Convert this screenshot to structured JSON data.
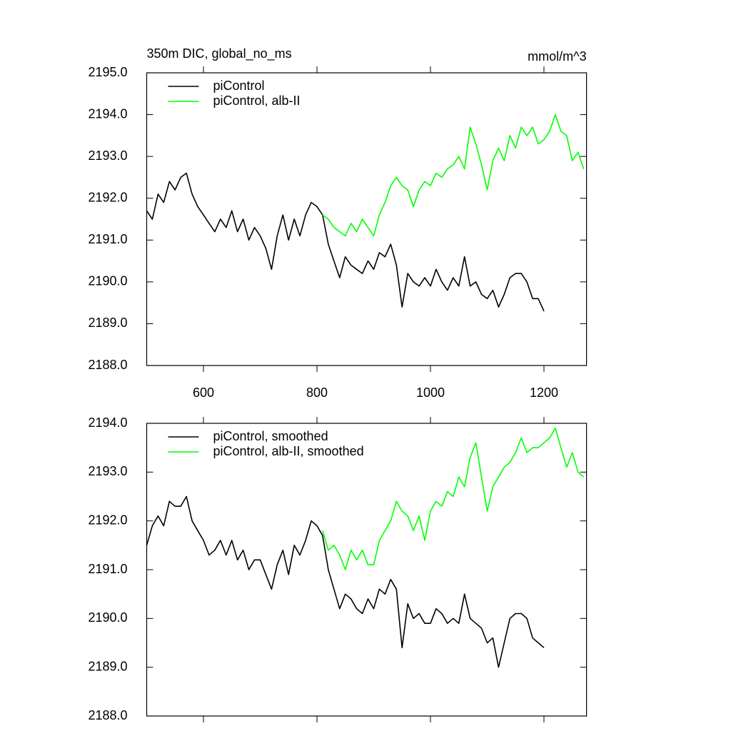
{
  "chart_data": [
    {
      "type": "line",
      "title": "350m DIC, global_no_ms",
      "units": "mmol/m^3",
      "xlim": [
        500,
        1275
      ],
      "xticks": [
        600,
        800,
        1000,
        1200
      ],
      "ylim": [
        2188,
        2195
      ],
      "yticks": [
        {
          "value": 2188,
          "label": "2188.0"
        },
        {
          "value": 2189,
          "label": "2189.0"
        },
        {
          "value": 2190,
          "label": "2190.0"
        },
        {
          "value": 2191,
          "label": "2191.0"
        },
        {
          "value": 2192,
          "label": "2192.0"
        },
        {
          "value": 2193,
          "label": "2193.0"
        },
        {
          "value": 2194,
          "label": "2194.0"
        },
        {
          "value": 2195,
          "label": "2195.0"
        }
      ],
      "legend": "upper-left",
      "series": [
        {
          "name": "piControl",
          "color": "#000000",
          "x": [
            500,
            510,
            520,
            530,
            540,
            550,
            560,
            570,
            580,
            590,
            600,
            610,
            620,
            630,
            640,
            650,
            660,
            670,
            680,
            690,
            700,
            710,
            720,
            730,
            740,
            750,
            760,
            770,
            780,
            790,
            800,
            810,
            820,
            830,
            840,
            850,
            860,
            870,
            880,
            890,
            900,
            910,
            920,
            930,
            940,
            950,
            960,
            970,
            980,
            990,
            1000,
            1010,
            1020,
            1030,
            1040,
            1050,
            1060,
            1070,
            1080,
            1090,
            1100,
            1110,
            1120,
            1130,
            1140,
            1150,
            1160,
            1170,
            1180,
            1190,
            1200
          ],
          "values": [
            2191.7,
            2191.5,
            2192.1,
            2191.9,
            2192.4,
            2192.2,
            2192.5,
            2192.6,
            2192.1,
            2191.8,
            2191.6,
            2191.4,
            2191.2,
            2191.5,
            2191.3,
            2191.7,
            2191.2,
            2191.5,
            2191.0,
            2191.3,
            2191.1,
            2190.8,
            2190.3,
            2191.1,
            2191.6,
            2191.0,
            2191.5,
            2191.1,
            2191.6,
            2191.9,
            2191.8,
            2191.6,
            2190.9,
            2190.5,
            2190.1,
            2190.6,
            2190.4,
            2190.3,
            2190.2,
            2190.5,
            2190.3,
            2190.7,
            2190.6,
            2190.9,
            2190.4,
            2189.4,
            2190.2,
            2190.0,
            2189.9,
            2190.1,
            2189.9,
            2190.3,
            2190.0,
            2189.8,
            2190.1,
            2189.9,
            2190.6,
            2189.9,
            2190.0,
            2189.7,
            2189.6,
            2189.8,
            2189.4,
            2189.7,
            2190.1,
            2190.2,
            2190.2,
            2190.0,
            2189.6,
            2189.6,
            2189.3
          ]
        },
        {
          "name": "piControl, alb-II",
          "color": "#00ff00",
          "x": [
            810,
            820,
            830,
            840,
            850,
            860,
            870,
            880,
            890,
            900,
            910,
            920,
            930,
            940,
            950,
            960,
            970,
            980,
            990,
            1000,
            1010,
            1020,
            1030,
            1040,
            1050,
            1060,
            1070,
            1080,
            1090,
            1100,
            1110,
            1120,
            1130,
            1140,
            1150,
            1160,
            1170,
            1180,
            1190,
            1200,
            1210,
            1220,
            1230,
            1240,
            1250,
            1260,
            1270
          ],
          "values": [
            2191.6,
            2191.5,
            2191.3,
            2191.2,
            2191.1,
            2191.4,
            2191.2,
            2191.5,
            2191.3,
            2191.1,
            2191.6,
            2191.9,
            2192.3,
            2192.5,
            2192.3,
            2192.2,
            2191.8,
            2192.2,
            2192.4,
            2192.3,
            2192.6,
            2192.5,
            2192.7,
            2192.8,
            2193.0,
            2192.7,
            2193.7,
            2193.3,
            2192.8,
            2192.2,
            2192.9,
            2193.2,
            2192.9,
            2193.5,
            2193.2,
            2193.7,
            2193.5,
            2193.7,
            2193.3,
            2193.4,
            2193.6,
            2194.0,
            2193.6,
            2193.5,
            2192.9,
            2193.1,
            2192.7
          ]
        }
      ]
    },
    {
      "type": "line",
      "xlim": [
        500,
        1275
      ],
      "xticks": [
        600,
        800,
        1000,
        1200
      ],
      "ylim": [
        2188,
        2194
      ],
      "yticks": [
        {
          "value": 2188,
          "label": "2188.0"
        },
        {
          "value": 2189,
          "label": "2189.0"
        },
        {
          "value": 2190,
          "label": "2190.0"
        },
        {
          "value": 2191,
          "label": "2191.0"
        },
        {
          "value": 2192,
          "label": "2192.0"
        },
        {
          "value": 2193,
          "label": "2193.0"
        },
        {
          "value": 2194,
          "label": "2194.0"
        }
      ],
      "legend": "upper-left",
      "series": [
        {
          "name": "piControl, smoothed",
          "color": "#000000",
          "x": [
            500,
            510,
            520,
            530,
            540,
            550,
            560,
            570,
            580,
            590,
            600,
            610,
            620,
            630,
            640,
            650,
            660,
            670,
            680,
            690,
            700,
            710,
            720,
            730,
            740,
            750,
            760,
            770,
            780,
            790,
            800,
            810,
            820,
            830,
            840,
            850,
            860,
            870,
            880,
            890,
            900,
            910,
            920,
            930,
            940,
            950,
            960,
            970,
            980,
            990,
            1000,
            1010,
            1020,
            1030,
            1040,
            1050,
            1060,
            1070,
            1080,
            1090,
            1100,
            1110,
            1120,
            1130,
            1140,
            1150,
            1160,
            1170,
            1180,
            1190,
            1200
          ],
          "values": [
            2191.5,
            2191.9,
            2192.1,
            2191.9,
            2192.4,
            2192.3,
            2192.3,
            2192.5,
            2192.0,
            2191.8,
            2191.6,
            2191.3,
            2191.4,
            2191.6,
            2191.3,
            2191.6,
            2191.2,
            2191.4,
            2191.0,
            2191.2,
            2191.2,
            2190.9,
            2190.6,
            2191.1,
            2191.4,
            2190.9,
            2191.5,
            2191.3,
            2191.6,
            2192.0,
            2191.9,
            2191.7,
            2191.0,
            2190.6,
            2190.2,
            2190.5,
            2190.4,
            2190.2,
            2190.1,
            2190.4,
            2190.2,
            2190.6,
            2190.5,
            2190.8,
            2190.6,
            2189.4,
            2190.3,
            2190.0,
            2190.1,
            2189.9,
            2189.9,
            2190.2,
            2190.1,
            2189.9,
            2190.0,
            2189.9,
            2190.5,
            2190.0,
            2189.9,
            2189.8,
            2189.5,
            2189.6,
            2189.0,
            2189.5,
            2190.0,
            2190.1,
            2190.1,
            2190.0,
            2189.6,
            2189.5,
            2189.4
          ]
        },
        {
          "name": "piControl, alb-II, smoothed",
          "color": "#00ff00",
          "x": [
            810,
            820,
            830,
            840,
            850,
            860,
            870,
            880,
            890,
            900,
            910,
            920,
            930,
            940,
            950,
            960,
            970,
            980,
            990,
            1000,
            1010,
            1020,
            1030,
            1040,
            1050,
            1060,
            1070,
            1080,
            1090,
            1100,
            1110,
            1120,
            1130,
            1140,
            1150,
            1160,
            1170,
            1180,
            1190,
            1200,
            1210,
            1220,
            1230,
            1240,
            1250,
            1260,
            1270
          ],
          "values": [
            2191.8,
            2191.4,
            2191.5,
            2191.3,
            2191.0,
            2191.4,
            2191.2,
            2191.4,
            2191.1,
            2191.1,
            2191.6,
            2191.8,
            2192.0,
            2192.4,
            2192.2,
            2192.1,
            2191.8,
            2192.1,
            2191.6,
            2192.2,
            2192.4,
            2192.3,
            2192.6,
            2192.5,
            2192.9,
            2192.7,
            2193.3,
            2193.6,
            2192.9,
            2192.2,
            2192.7,
            2192.9,
            2193.1,
            2193.2,
            2193.4,
            2193.7,
            2193.4,
            2193.5,
            2193.5,
            2193.6,
            2193.7,
            2193.9,
            2193.5,
            2193.1,
            2193.4,
            2193.0,
            2192.9
          ]
        }
      ]
    }
  ]
}
